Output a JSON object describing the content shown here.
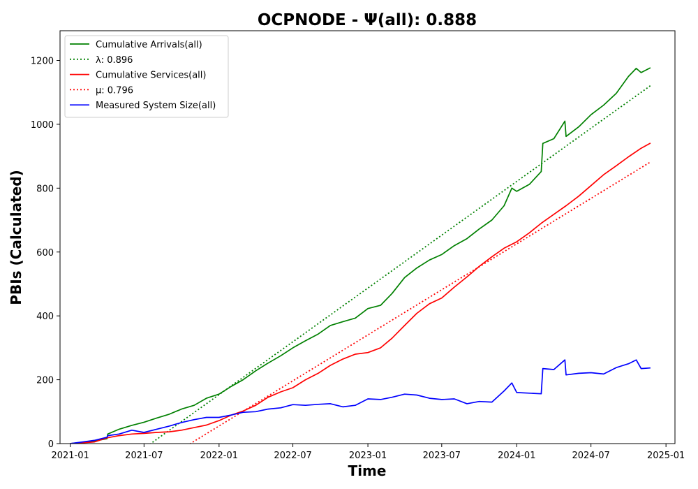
{
  "chart_data": {
    "type": "line",
    "title": "OCPNODE -  Ψ(all): 0.888",
    "xlabel": "Time",
    "ylabel": "PBIs (Calculated)",
    "xlim": [
      "2020-12-07",
      "2025-01-23"
    ],
    "ylim": [
      0,
      1293
    ],
    "grid": false,
    "legend_position": "top-left",
    "x_ticks": [
      "2021-01",
      "2021-07",
      "2022-01",
      "2022-07",
      "2023-01",
      "2023-07",
      "2024-01",
      "2024-07",
      "2025-01"
    ],
    "y_ticks": [
      0,
      200,
      400,
      600,
      800,
      1000,
      1200
    ],
    "series": [
      {
        "name": "Cumulative Arrivals(all)",
        "label": "Cumulative Arrivals(all)",
        "color": "#008000",
        "style": "solid",
        "points": [
          [
            "2021-01-01",
            0
          ],
          [
            "2021-03-01",
            8
          ],
          [
            "2021-04-01",
            15
          ],
          [
            "2021-04-03",
            30
          ],
          [
            "2021-05-01",
            45
          ],
          [
            "2021-06-01",
            57
          ],
          [
            "2021-07-01",
            67
          ],
          [
            "2021-08-01",
            80
          ],
          [
            "2021-09-01",
            92
          ],
          [
            "2021-10-01",
            108
          ],
          [
            "2021-11-01",
            120
          ],
          [
            "2021-12-01",
            142
          ],
          [
            "2022-01-01",
            155
          ],
          [
            "2022-02-01",
            180
          ],
          [
            "2022-03-01",
            200
          ],
          [
            "2022-04-01",
            228
          ],
          [
            "2022-05-01",
            252
          ],
          [
            "2022-06-01",
            275
          ],
          [
            "2022-07-01",
            300
          ],
          [
            "2022-08-01",
            322
          ],
          [
            "2022-09-01",
            343
          ],
          [
            "2022-10-01",
            370
          ],
          [
            "2022-11-01",
            382
          ],
          [
            "2022-12-01",
            393
          ],
          [
            "2023-01-01",
            423
          ],
          [
            "2023-02-01",
            433
          ],
          [
            "2023-03-01",
            470
          ],
          [
            "2023-04-01",
            520
          ],
          [
            "2023-05-01",
            550
          ],
          [
            "2023-06-01",
            575
          ],
          [
            "2023-07-01",
            592
          ],
          [
            "2023-08-01",
            620
          ],
          [
            "2023-09-01",
            642
          ],
          [
            "2023-10-01",
            672
          ],
          [
            "2023-11-01",
            700
          ],
          [
            "2023-12-01",
            745
          ],
          [
            "2023-12-20",
            800
          ],
          [
            "2024-01-01",
            790
          ],
          [
            "2024-02-01",
            812
          ],
          [
            "2024-03-01",
            852
          ],
          [
            "2024-03-05",
            940
          ],
          [
            "2024-04-01",
            955
          ],
          [
            "2024-04-28",
            1010
          ],
          [
            "2024-05-01",
            962
          ],
          [
            "2024-06-01",
            992
          ],
          [
            "2024-07-01",
            1030
          ],
          [
            "2024-08-01",
            1060
          ],
          [
            "2024-09-01",
            1097
          ],
          [
            "2024-10-01",
            1150
          ],
          [
            "2024-10-20",
            1175
          ],
          [
            "2024-11-01",
            1162
          ],
          [
            "2024-11-24",
            1177
          ]
        ]
      },
      {
        "name": "λ: 0.896",
        "label": "λ: 0.896",
        "color": "#008000",
        "style": "dotted",
        "points": [
          [
            "2021-07-01",
            -15
          ],
          [
            "2024-11-24",
            1121
          ]
        ]
      },
      {
        "name": "Cumulative Services(all)",
        "label": "Cumulative Services(all)",
        "color": "#ff0000",
        "style": "solid",
        "points": [
          [
            "2021-01-01",
            0
          ],
          [
            "2021-03-01",
            5
          ],
          [
            "2021-04-01",
            18
          ],
          [
            "2021-05-01",
            25
          ],
          [
            "2021-06-01",
            30
          ],
          [
            "2021-07-01",
            32
          ],
          [
            "2021-08-01",
            35
          ],
          [
            "2021-09-01",
            37
          ],
          [
            "2021-10-01",
            42
          ],
          [
            "2021-11-01",
            50
          ],
          [
            "2021-12-01",
            58
          ],
          [
            "2022-01-01",
            72
          ],
          [
            "2022-02-01",
            90
          ],
          [
            "2022-03-01",
            102
          ],
          [
            "2022-04-01",
            120
          ],
          [
            "2022-05-01",
            145
          ],
          [
            "2022-06-01",
            162
          ],
          [
            "2022-07-01",
            175
          ],
          [
            "2022-08-01",
            200
          ],
          [
            "2022-09-01",
            220
          ],
          [
            "2022-10-01",
            245
          ],
          [
            "2022-11-01",
            265
          ],
          [
            "2022-12-01",
            280
          ],
          [
            "2023-01-01",
            285
          ],
          [
            "2023-02-01",
            300
          ],
          [
            "2023-03-01",
            330
          ],
          [
            "2023-04-01",
            370
          ],
          [
            "2023-05-01",
            408
          ],
          [
            "2023-06-01",
            438
          ],
          [
            "2023-07-01",
            456
          ],
          [
            "2023-08-01",
            490
          ],
          [
            "2023-09-01",
            522
          ],
          [
            "2023-10-01",
            555
          ],
          [
            "2023-11-01",
            585
          ],
          [
            "2023-12-01",
            612
          ],
          [
            "2024-01-01",
            632
          ],
          [
            "2024-02-01",
            660
          ],
          [
            "2024-03-01",
            690
          ],
          [
            "2024-04-01",
            718
          ],
          [
            "2024-05-01",
            745
          ],
          [
            "2024-06-01",
            775
          ],
          [
            "2024-07-01",
            808
          ],
          [
            "2024-08-01",
            842
          ],
          [
            "2024-09-01",
            870
          ],
          [
            "2024-10-01",
            898
          ],
          [
            "2024-11-01",
            925
          ],
          [
            "2024-11-24",
            941
          ]
        ]
      },
      {
        "name": "μ: 0.796",
        "label": "μ: 0.796",
        "color": "#ff0000",
        "style": "dotted",
        "points": [
          [
            "2021-10-21",
            -1
          ],
          [
            "2024-11-24",
            882
          ]
        ]
      },
      {
        "name": "Measured System Size(all)",
        "label": "Measured System Size(all)",
        "color": "#0000ff",
        "style": "solid",
        "points": [
          [
            "2021-01-01",
            0
          ],
          [
            "2021-03-01",
            10
          ],
          [
            "2021-04-01",
            20
          ],
          [
            "2021-04-03",
            25
          ],
          [
            "2021-05-01",
            30
          ],
          [
            "2021-06-01",
            42
          ],
          [
            "2021-07-01",
            35
          ],
          [
            "2021-08-01",
            45
          ],
          [
            "2021-09-01",
            55
          ],
          [
            "2021-10-01",
            66
          ],
          [
            "2021-11-01",
            75
          ],
          [
            "2021-12-01",
            82
          ],
          [
            "2022-01-01",
            82
          ],
          [
            "2022-02-01",
            90
          ],
          [
            "2022-03-01",
            98
          ],
          [
            "2022-04-01",
            100
          ],
          [
            "2022-05-01",
            108
          ],
          [
            "2022-06-01",
            112
          ],
          [
            "2022-07-01",
            122
          ],
          [
            "2022-08-01",
            120
          ],
          [
            "2022-09-01",
            123
          ],
          [
            "2022-10-01",
            125
          ],
          [
            "2022-11-01",
            115
          ],
          [
            "2022-12-01",
            120
          ],
          [
            "2023-01-01",
            140
          ],
          [
            "2023-02-01",
            138
          ],
          [
            "2023-03-01",
            145
          ],
          [
            "2023-04-01",
            155
          ],
          [
            "2023-05-01",
            152
          ],
          [
            "2023-06-01",
            142
          ],
          [
            "2023-07-01",
            138
          ],
          [
            "2023-08-01",
            140
          ],
          [
            "2023-09-01",
            125
          ],
          [
            "2023-10-01",
            132
          ],
          [
            "2023-11-01",
            130
          ],
          [
            "2023-12-01",
            165
          ],
          [
            "2023-12-20",
            190
          ],
          [
            "2024-01-01",
            160
          ],
          [
            "2024-02-01",
            158
          ],
          [
            "2024-03-01",
            156
          ],
          [
            "2024-03-05",
            235
          ],
          [
            "2024-04-01",
            232
          ],
          [
            "2024-04-28",
            262
          ],
          [
            "2024-05-01",
            215
          ],
          [
            "2024-06-01",
            220
          ],
          [
            "2024-07-01",
            222
          ],
          [
            "2024-08-01",
            218
          ],
          [
            "2024-09-01",
            238
          ],
          [
            "2024-10-01",
            250
          ],
          [
            "2024-10-20",
            262
          ],
          [
            "2024-11-01",
            235
          ],
          [
            "2024-11-24",
            237
          ]
        ]
      }
    ]
  }
}
